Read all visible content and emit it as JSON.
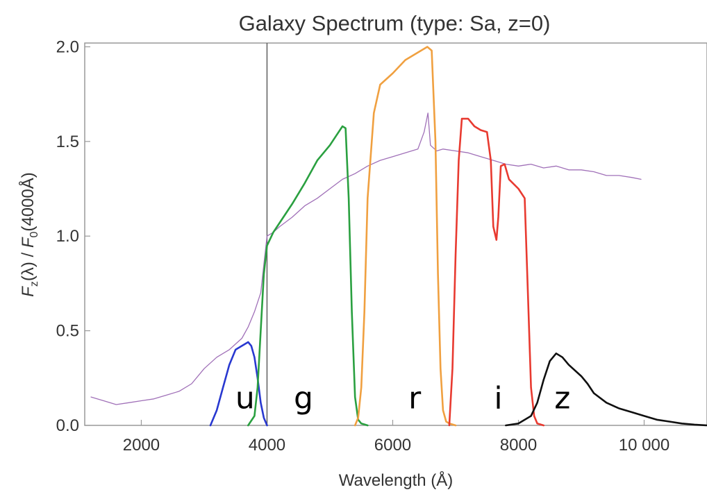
{
  "chart_data": {
    "type": "line",
    "title": "Galaxy Spectrum (type: Sa, z=0)",
    "xlabel": "Wavelength (Å)",
    "ylabel_parts": {
      "f1": "F",
      "sub1": "z",
      "mid": "(λ) / ",
      "f2": "F",
      "sub2": "0",
      "tail": "(4000Å)"
    },
    "xlim": [
      1100,
      11000
    ],
    "ylim": [
      0,
      2.02
    ],
    "x_ticks": [
      2000,
      4000,
      6000,
      8000,
      10000
    ],
    "x_tick_labels": [
      "2000",
      "4000",
      "6000",
      "8000",
      "10 000"
    ],
    "y_ticks": [
      0,
      0.5,
      1.0,
      1.5,
      2.0
    ],
    "y_tick_labels": [
      "0.0",
      "0.5",
      "1.0",
      "1.5",
      "2.0"
    ],
    "vline_x": 4000,
    "series": [
      {
        "color": "#a070b8",
        "x": [
          1200,
          1400,
          1600,
          1800,
          2000,
          2200,
          2400,
          2600,
          2800,
          3000,
          3200,
          3400,
          3600,
          3700,
          3800,
          3900,
          3950,
          4000,
          4100,
          4200,
          4400,
          4600,
          4800,
          5000,
          5200,
          5400,
          5600,
          5800,
          6000,
          6200,
          6400,
          6500,
          6560,
          6600,
          6700,
          6800,
          7000,
          7200,
          7400,
          7600,
          7800,
          8000,
          8200,
          8400,
          8600,
          8800,
          9000,
          9200,
          9400,
          9600,
          9800,
          9950
        ],
        "y": [
          0.15,
          0.13,
          0.11,
          0.12,
          0.13,
          0.14,
          0.16,
          0.18,
          0.22,
          0.3,
          0.36,
          0.4,
          0.46,
          0.52,
          0.6,
          0.7,
          0.85,
          1.0,
          1.02,
          1.05,
          1.1,
          1.16,
          1.2,
          1.25,
          1.3,
          1.33,
          1.37,
          1.4,
          1.42,
          1.44,
          1.46,
          1.55,
          1.65,
          1.48,
          1.45,
          1.46,
          1.45,
          1.44,
          1.42,
          1.4,
          1.38,
          1.37,
          1.38,
          1.36,
          1.37,
          1.35,
          1.35,
          1.34,
          1.32,
          1.32,
          1.31,
          1.3
        ]
      },
      {
        "name": "u",
        "color": "#2838d0",
        "x": [
          3100,
          3200,
          3300,
          3400,
          3500,
          3600,
          3700,
          3750,
          3800,
          3850,
          3900,
          3950,
          4000
        ],
        "y": [
          0,
          0.08,
          0.2,
          0.32,
          0.4,
          0.42,
          0.44,
          0.42,
          0.36,
          0.25,
          0.12,
          0.04,
          0
        ]
      },
      {
        "name": "g",
        "color": "#2aa040",
        "x": [
          3700,
          3800,
          3850,
          3900,
          3950,
          4000,
          4100,
          4200,
          4400,
          4600,
          4800,
          5000,
          5100,
          5200,
          5250,
          5300,
          5350,
          5400,
          5450,
          5500,
          5600
        ],
        "y": [
          0,
          0.05,
          0.2,
          0.5,
          0.8,
          0.95,
          1.02,
          1.07,
          1.17,
          1.28,
          1.4,
          1.48,
          1.53,
          1.58,
          1.57,
          1.2,
          0.6,
          0.15,
          0.03,
          0.01,
          0
        ]
      },
      {
        "name": "r",
        "color": "#f0a040",
        "x": [
          5400,
          5450,
          5500,
          5550,
          5600,
          5700,
          5800,
          6000,
          6200,
          6400,
          6550,
          6620,
          6680,
          6720,
          6760,
          6800,
          6850,
          6900,
          7000
        ],
        "y": [
          0,
          0.04,
          0.2,
          0.6,
          1.2,
          1.65,
          1.8,
          1.86,
          1.93,
          1.97,
          2.0,
          1.98,
          1.5,
          0.8,
          0.3,
          0.08,
          0.02,
          0.01,
          0
        ]
      },
      {
        "name": "i",
        "color": "#e83a30",
        "x": [
          6900,
          6950,
          7000,
          7050,
          7100,
          7200,
          7300,
          7400,
          7500,
          7560,
          7600,
          7650,
          7680,
          7720,
          7780,
          7850,
          8000,
          8100,
          8150,
          8200,
          8250,
          8300,
          8400
        ],
        "y": [
          0,
          0.3,
          0.9,
          1.4,
          1.62,
          1.62,
          1.58,
          1.56,
          1.55,
          1.4,
          1.05,
          0.98,
          1.1,
          1.37,
          1.38,
          1.3,
          1.25,
          1.2,
          0.7,
          0.2,
          0.05,
          0.01,
          0
        ]
      },
      {
        "name": "z",
        "color": "#101010",
        "x": [
          7800,
          8000,
          8200,
          8300,
          8400,
          8500,
          8600,
          8700,
          8800,
          9000,
          9100,
          9200,
          9400,
          9600,
          9800,
          10000,
          10200,
          10400,
          10600,
          10800,
          11000
        ],
        "y": [
          0,
          0.01,
          0.05,
          0.12,
          0.24,
          0.34,
          0.38,
          0.36,
          0.32,
          0.26,
          0.22,
          0.17,
          0.12,
          0.09,
          0.07,
          0.05,
          0.03,
          0.02,
          0.01,
          0.004,
          0
        ]
      }
    ],
    "filter_labels": [
      {
        "text": "u",
        "x": 3650,
        "y": 0.09
      },
      {
        "text": "g",
        "x": 4580,
        "y": 0.09
      },
      {
        "text": "r",
        "x": 6350,
        "y": 0.09
      },
      {
        "text": "i",
        "x": 7680,
        "y": 0.09
      },
      {
        "text": "z",
        "x": 8700,
        "y": 0.09
      }
    ]
  }
}
